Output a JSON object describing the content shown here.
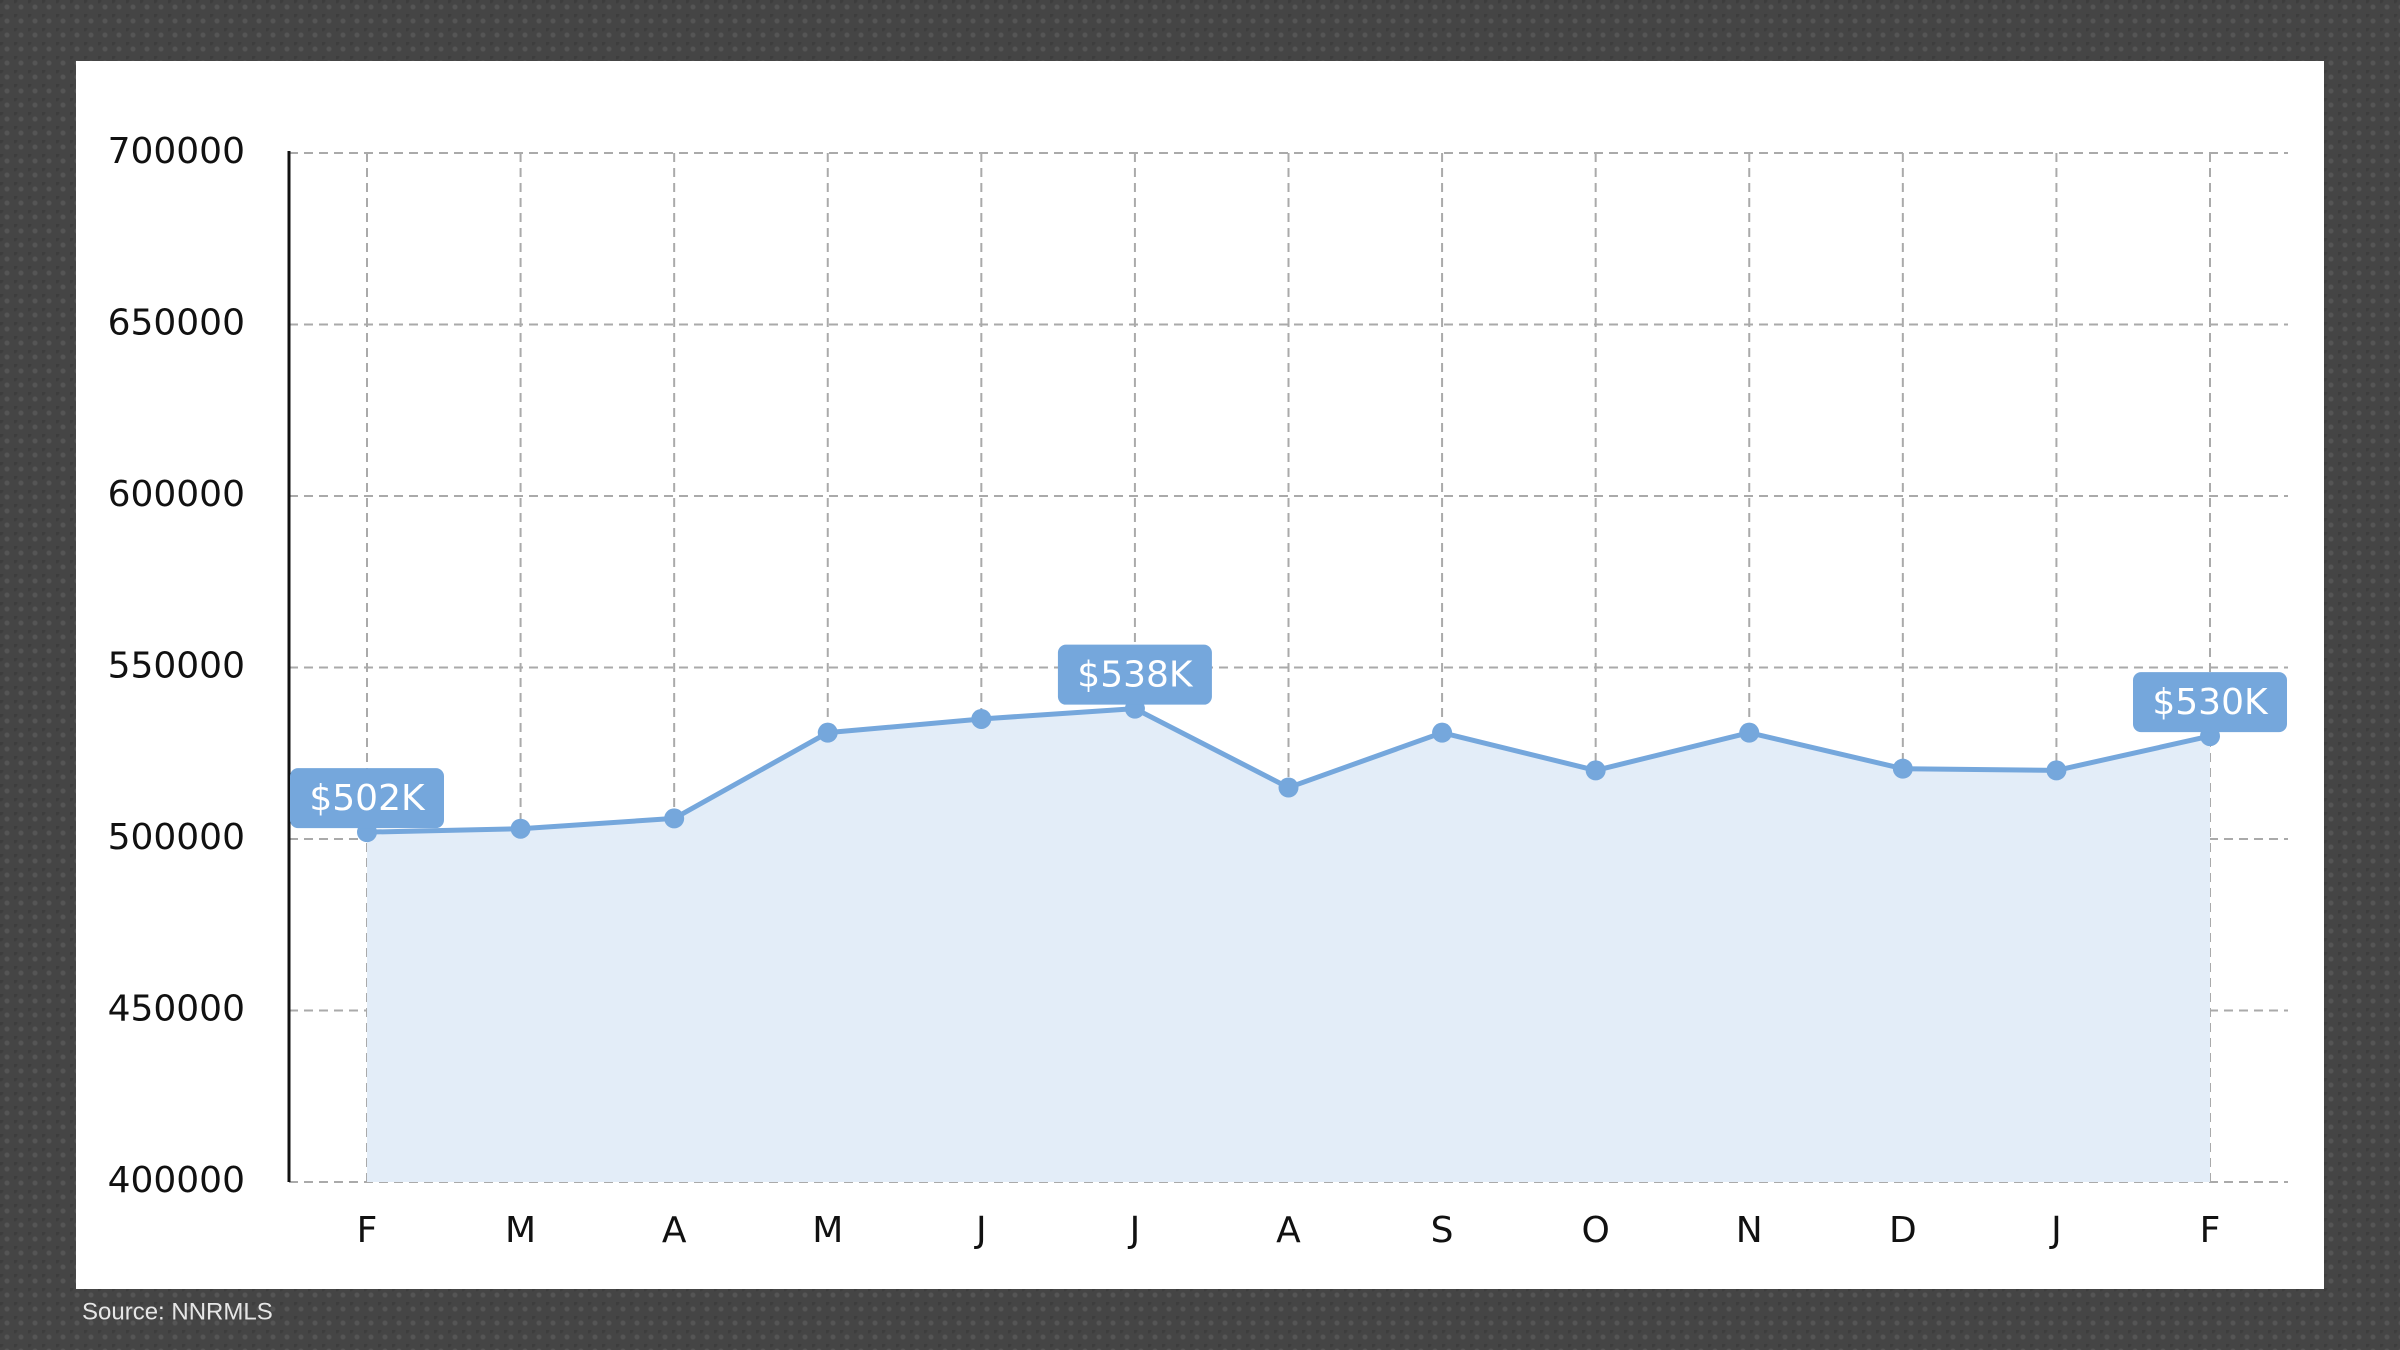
{
  "chart_data": {
    "type": "area",
    "categories": [
      "F",
      "M",
      "A",
      "M",
      "J",
      "J",
      "A",
      "S",
      "O",
      "N",
      "D",
      "J",
      "F"
    ],
    "values": [
      502000,
      503000,
      506000,
      531000,
      535000,
      538000,
      515000,
      531000,
      520000,
      531000,
      520500,
      520000,
      530000
    ],
    "value_labels": [
      "$502K",
      null,
      null,
      null,
      null,
      "$538K",
      null,
      null,
      null,
      null,
      null,
      null,
      "$530K"
    ],
    "color": "#75a7dc",
    "ylim": [
      400000,
      700000
    ],
    "yticks": [
      400000,
      450000,
      500000,
      550000,
      600000,
      650000,
      700000
    ],
    "grid": true,
    "source": "Source: NNRMLS"
  }
}
